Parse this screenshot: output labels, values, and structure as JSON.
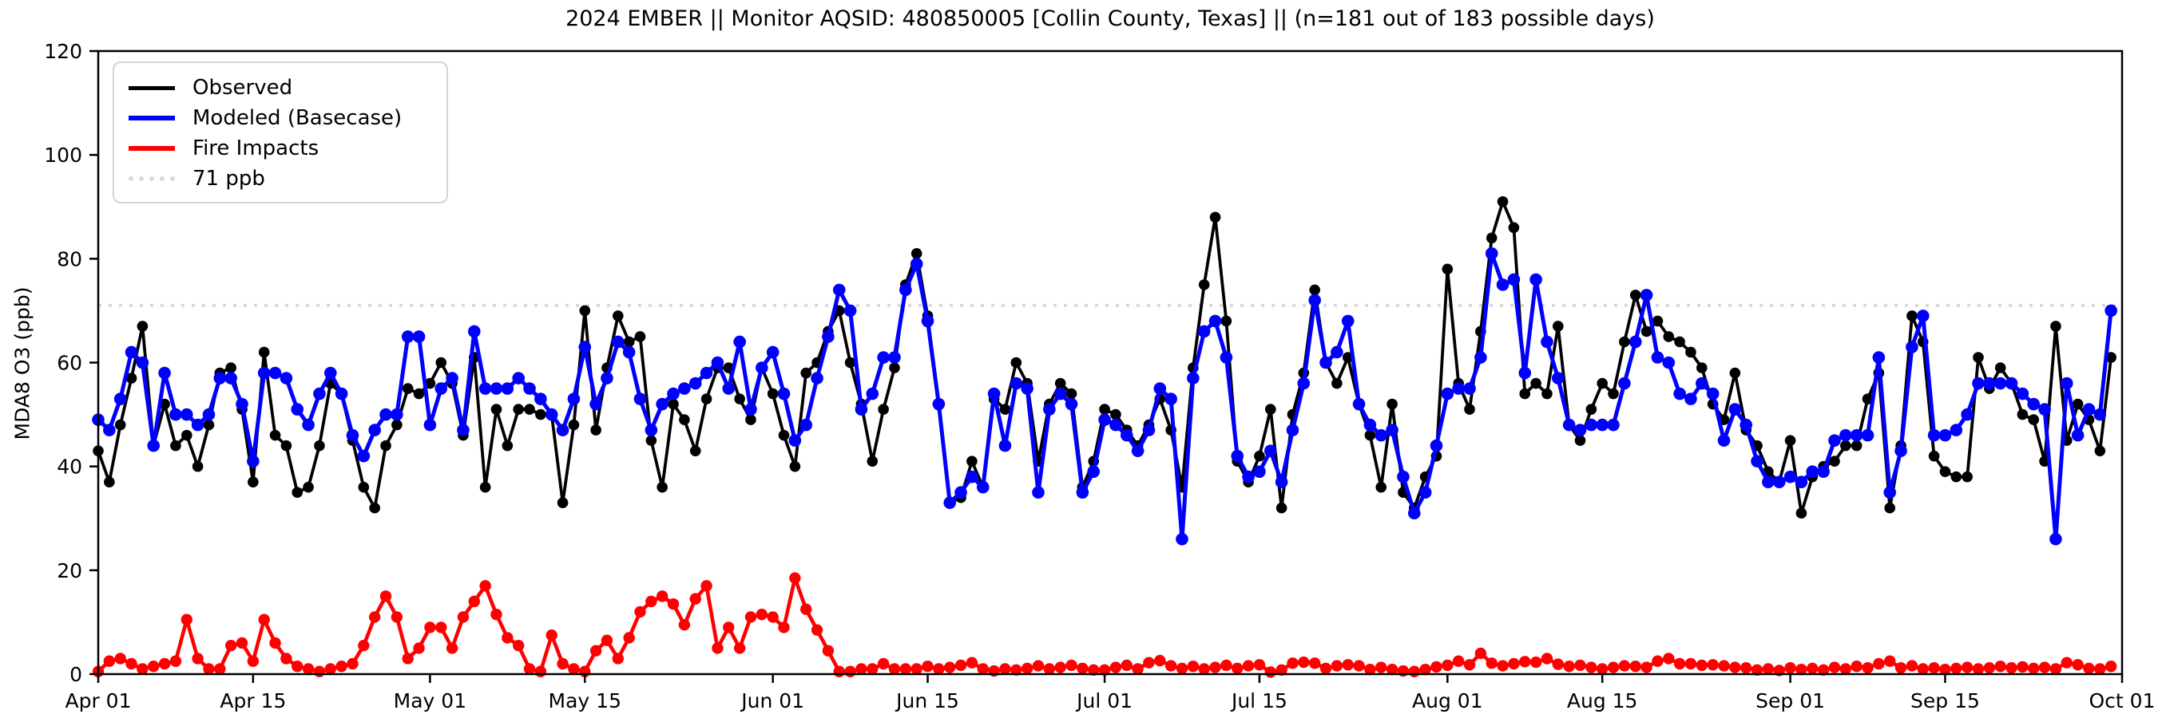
{
  "figure": {
    "title": "2024 EMBER || Monitor AQSID: 480850005 [Collin County, Texas] || (n=181 out of 183 possible days)",
    "y_axis_label": "MDA8 O3 (ppb)"
  },
  "legend": {
    "items": [
      {
        "label": "Observed",
        "color": "#000000",
        "style": "solid"
      },
      {
        "label": "Modeled (Basecase)",
        "color": "#0000ff",
        "style": "solid"
      },
      {
        "label": "Fire Impacts",
        "color": "#ff0000",
        "style": "solid"
      },
      {
        "label": "71 ppb",
        "color": "#d9d9d9",
        "style": "dotted"
      }
    ],
    "position": "upper left"
  },
  "chart_data": {
    "type": "line",
    "title": "2024 EMBER || Monitor AQSID: 480850005 [Collin County, Texas] || (n=181 out of 183 possible days)",
    "xlabel": "",
    "ylabel": "MDA8 O3 (ppb)",
    "ylim": [
      0,
      120
    ],
    "y_ticks": [
      0,
      20,
      40,
      60,
      80,
      100,
      120
    ],
    "x_tick_labels": [
      "Apr 01",
      "Apr 15",
      "May 01",
      "May 15",
      "Jun 01",
      "Jun 15",
      "Jul 01",
      "Jul 15",
      "Aug 01",
      "Aug 15",
      "Sep 01",
      "Sep 15",
      "Oct 01"
    ],
    "x_tick_day_index": [
      0,
      14,
      30,
      44,
      61,
      75,
      91,
      105,
      122,
      136,
      153,
      167,
      183
    ],
    "start_date": "2024-04-01",
    "end_date": "2024-09-30",
    "n_days_total": 183,
    "grid": false,
    "threshold": {
      "label": "71 ppb",
      "value": 71,
      "color": "#d9d9d9",
      "style": "dotted"
    },
    "values_note": "daily MDA8 O3 in ppb, estimated from plot",
    "series": [
      {
        "name": "Observed",
        "color": "#000000",
        "marker": "circle",
        "values": [
          43,
          37,
          48,
          57,
          67,
          44,
          52,
          44,
          46,
          40,
          48,
          58,
          59,
          51,
          37,
          62,
          46,
          44,
          35,
          36,
          44,
          56,
          54,
          45,
          36,
          32,
          44,
          48,
          55,
          54,
          56,
          60,
          56,
          46,
          61,
          36,
          51,
          44,
          51,
          51,
          50,
          50,
          33,
          48,
          70,
          47,
          59,
          69,
          64,
          65,
          45,
          36,
          52,
          49,
          43,
          53,
          59,
          59,
          53,
          49,
          59,
          54,
          46,
          40,
          58,
          60,
          66,
          70,
          60,
          52,
          41,
          51,
          59,
          75,
          81,
          69,
          52,
          33,
          34,
          41,
          36,
          53,
          51,
          60,
          56,
          41,
          52,
          56,
          54,
          36,
          41,
          51,
          50,
          47,
          44,
          48,
          53,
          47,
          36,
          59,
          75,
          88,
          68,
          41,
          37,
          42,
          51,
          32,
          50,
          58,
          74,
          60,
          56,
          61,
          52,
          46,
          36,
          52,
          35,
          32,
          38,
          42,
          78,
          56,
          51,
          66,
          84,
          91,
          86,
          54,
          56,
          54,
          67,
          48,
          45,
          51,
          56,
          54,
          64,
          73,
          66,
          68,
          65,
          64,
          62,
          59,
          52,
          49,
          58,
          47,
          44,
          39,
          37,
          45,
          31,
          38,
          40,
          41,
          44,
          44,
          53,
          58,
          32,
          44,
          69,
          64,
          42,
          39,
          38,
          38,
          61,
          55,
          59,
          56,
          50,
          49,
          41,
          67,
          45,
          52,
          49,
          43,
          61
        ]
      },
      {
        "name": "Modeled (Basecase)",
        "color": "#0000ff",
        "marker": "circle",
        "values": [
          49,
          47,
          53,
          62,
          60,
          44,
          58,
          50,
          50,
          48,
          50,
          57,
          57,
          52,
          41,
          58,
          58,
          57,
          51,
          48,
          54,
          58,
          54,
          46,
          42,
          47,
          50,
          50,
          65,
          65,
          48,
          55,
          57,
          47,
          66,
          55,
          55,
          55,
          57,
          55,
          53,
          50,
          47,
          53,
          63,
          52,
          57,
          64,
          62,
          53,
          47,
          52,
          54,
          55,
          56,
          58,
          60,
          55,
          64,
          51,
          59,
          62,
          54,
          45,
          48,
          57,
          65,
          74,
          70,
          51,
          54,
          61,
          61,
          74,
          79,
          68,
          52,
          33,
          35,
          38,
          36,
          54,
          44,
          56,
          55,
          35,
          51,
          54,
          52,
          35,
          39,
          49,
          48,
          46,
          43,
          47,
          55,
          53,
          26,
          57,
          66,
          68,
          61,
          42,
          38,
          39,
          43,
          37,
          47,
          56,
          72,
          60,
          62,
          68,
          52,
          48,
          46,
          47,
          38,
          31,
          35,
          44,
          54,
          55,
          55,
          61,
          81,
          75,
          76,
          58,
          76,
          64,
          57,
          48,
          47,
          48,
          48,
          48,
          56,
          64,
          73,
          61,
          60,
          54,
          53,
          56,
          54,
          45,
          51,
          48,
          41,
          37,
          37,
          38,
          37,
          39,
          39,
          45,
          46,
          46,
          46,
          61,
          35,
          43,
          63,
          69,
          46,
          46,
          47,
          50,
          56,
          56,
          56,
          56,
          54,
          52,
          51,
          26,
          56,
          46,
          51,
          50,
          70
        ]
      },
      {
        "name": "Fire Impacts",
        "color": "#ff0000",
        "marker": "circle",
        "values": [
          0.5,
          2.5,
          3,
          2,
          1,
          1.5,
          2,
          2.5,
          10.5,
          3,
          1,
          1,
          5.5,
          6,
          2.5,
          10.5,
          6,
          3,
          1.5,
          1,
          0.5,
          1,
          1.5,
          2,
          5.5,
          11,
          15,
          11,
          3,
          5,
          9,
          9,
          5,
          11,
          14,
          17,
          11.5,
          7,
          5.5,
          1,
          0.5,
          7.5,
          2,
          1,
          0.5,
          4.5,
          6.5,
          3,
          7,
          12,
          14,
          15,
          13.5,
          9.5,
          14.5,
          17,
          5,
          9,
          5,
          11,
          11.5,
          11,
          9,
          18.5,
          12.5,
          8.5,
          4.5,
          0.5,
          0.5,
          1,
          1,
          2,
          1,
          1,
          1,
          1.5,
          1,
          1.3,
          1.7,
          2.2,
          1,
          0.6,
          1,
          0.8,
          1.1,
          1.6,
          1,
          1.3,
          1.7,
          1.1,
          0.8,
          0.8,
          1.3,
          1.7,
          1,
          2.2,
          2.6,
          1.6,
          1.1,
          1.5,
          1,
          1.3,
          1.7,
          1.1,
          1.6,
          1.8,
          0.4,
          0.8,
          2.1,
          2.3,
          2.1,
          1.1,
          1.6,
          1.8,
          1.6,
          0.9,
          1.3,
          0.9,
          0.6,
          0.5,
          0.9,
          1.4,
          1.7,
          2.5,
          1.8,
          4,
          2.1,
          1.6,
          2,
          2.4,
          2.3,
          3,
          1.9,
          1.5,
          1.7,
          1.3,
          1,
          1.3,
          1.6,
          1.5,
          1.3,
          2.5,
          3,
          2,
          2,
          1.7,
          1.8,
          1.6,
          1.3,
          1.2,
          0.8,
          1,
          0.7,
          1.2,
          0.9,
          1.1,
          0.8,
          1.3,
          1,
          1.5,
          1.2,
          2,
          2.5,
          1.2,
          1.6,
          1,
          1.2,
          0.9,
          1.1,
          1.3,
          1,
          1.2,
          1.5,
          1.2,
          1.4,
          1.1,
          1.3,
          1,
          2.2,
          1.8,
          1.1,
          1,
          1.5
        ]
      }
    ]
  }
}
